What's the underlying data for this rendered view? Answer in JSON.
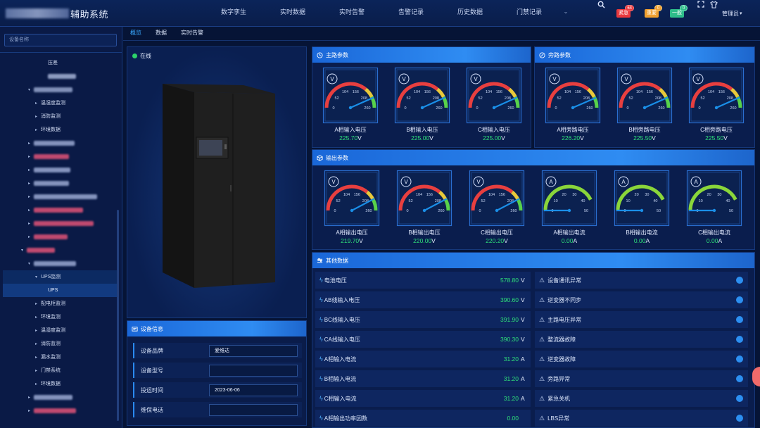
{
  "header": {
    "system_title": "辅助系统",
    "nav": [
      "数字孪生",
      "实时数据",
      "实时告警",
      "告警记录",
      "历史数据",
      "门禁记录"
    ],
    "alerts": [
      {
        "label": "紧急",
        "count": "64",
        "color": "#e8383d"
      },
      {
        "label": "重要",
        "count": "0",
        "color": "#f0a030"
      },
      {
        "label": "一般",
        "count": "0",
        "color": "#2ebd8a"
      }
    ],
    "user": "管理员"
  },
  "sidebar": {
    "search_placeholder": "设备名称",
    "items": [
      {
        "label": "压差"
      },
      {
        "label": ""
      },
      {
        "label": ""
      },
      {
        "label": "温湿度监测"
      },
      {
        "label": "消防监测"
      },
      {
        "label": "环境数据"
      },
      {
        "label": ""
      },
      {
        "label": ""
      },
      {
        "label": ""
      },
      {
        "label": ""
      },
      {
        "label": ""
      },
      {
        "label": ""
      },
      {
        "label": ""
      },
      {
        "label": ""
      },
      {
        "label": ""
      },
      {
        "label": "UPS监测"
      },
      {
        "label": "UPS"
      },
      {
        "label": "配电柜监测"
      },
      {
        "label": "环境监测"
      },
      {
        "label": "温湿度监测"
      },
      {
        "label": "消防监测"
      },
      {
        "label": "漏水监测"
      },
      {
        "label": "门禁系统"
      },
      {
        "label": "环境数据"
      },
      {
        "label": ""
      },
      {
        "label": ""
      }
    ]
  },
  "tabs": [
    "概览",
    "数据",
    "实时告警"
  ],
  "device": {
    "status": "在线"
  },
  "device_info": {
    "title": "设备信息",
    "rows": [
      {
        "label": "设备品牌",
        "value": "爱维达"
      },
      {
        "label": "设备型号",
        "value": ""
      },
      {
        "label": "投运时间",
        "value": "2023-06-06"
      },
      {
        "label": "维保电话",
        "value": ""
      }
    ]
  },
  "main_params": {
    "title": "主路参数",
    "gauges": [
      {
        "name": "A相输入电压",
        "value": "225.70",
        "unit": "V",
        "symbol": "V",
        "reading": 225.7,
        "ticks": [
          "0",
          "52",
          "104",
          "156",
          "208",
          "260"
        ]
      },
      {
        "name": "B相输入电压",
        "value": "225.00",
        "unit": "V",
        "symbol": "V",
        "reading": 225.0,
        "ticks": [
          "0",
          "52",
          "104",
          "156",
          "208",
          "260"
        ]
      },
      {
        "name": "C相输入电压",
        "value": "225.00",
        "unit": "V",
        "symbol": "V",
        "reading": 225.0,
        "ticks": [
          "0",
          "52",
          "104",
          "156",
          "208",
          "260"
        ]
      }
    ]
  },
  "bypass_params": {
    "title": "旁路参数",
    "gauges": [
      {
        "name": "A相旁路电压",
        "value": "226.20",
        "unit": "V",
        "symbol": "V",
        "reading": 226.2,
        "ticks": [
          "0",
          "52",
          "104",
          "156",
          "208",
          "260"
        ]
      },
      {
        "name": "B相旁路电压",
        "value": "225.50",
        "unit": "V",
        "symbol": "V",
        "reading": 225.5,
        "ticks": [
          "0",
          "52",
          "104",
          "156",
          "208",
          "260"
        ]
      },
      {
        "name": "C相旁路电压",
        "value": "225.50",
        "unit": "V",
        "symbol": "V",
        "reading": 225.5,
        "ticks": [
          "0",
          "52",
          "104",
          "156",
          "208",
          "260"
        ]
      }
    ]
  },
  "output_params": {
    "title": "输出参数",
    "gauges": [
      {
        "name": "A相输出电压",
        "value": "219.70",
        "unit": "V",
        "symbol": "V",
        "reading": 219.7,
        "ticks": [
          "0",
          "52",
          "104",
          "156",
          "208",
          "260"
        ]
      },
      {
        "name": "B相输出电压",
        "value": "220.00",
        "unit": "V",
        "symbol": "V",
        "reading": 220.0,
        "ticks": [
          "0",
          "52",
          "104",
          "156",
          "208",
          "260"
        ]
      },
      {
        "name": "C相输出电压",
        "value": "220.20",
        "unit": "V",
        "symbol": "V",
        "reading": 220.2,
        "ticks": [
          "0",
          "52",
          "104",
          "156",
          "208",
          "260"
        ]
      },
      {
        "name": "A相输出电流",
        "value": "0.00",
        "unit": "A",
        "symbol": "A",
        "reading": 0,
        "ticks": [
          "0",
          "10",
          "20",
          "30",
          "40",
          "50"
        ]
      },
      {
        "name": "B相输出电流",
        "value": "0.00",
        "unit": "A",
        "symbol": "A",
        "reading": 0,
        "ticks": [
          "0",
          "10",
          "20",
          "30",
          "40",
          "50"
        ]
      },
      {
        "name": "C相输出电流",
        "value": "0.00",
        "unit": "A",
        "symbol": "A",
        "reading": 0,
        "ticks": [
          "0",
          "10",
          "20",
          "30",
          "40",
          "50"
        ]
      }
    ]
  },
  "other_data": {
    "title": "其他数据",
    "measurements": [
      {
        "label": "电池电压",
        "value": "578.80",
        "unit": "V"
      },
      {
        "label": "AB线输入电压",
        "value": "390.60",
        "unit": "V"
      },
      {
        "label": "BC线输入电压",
        "value": "391.90",
        "unit": "V"
      },
      {
        "label": "CA线输入电压",
        "value": "390.30",
        "unit": "V"
      },
      {
        "label": "A相输入电流",
        "value": "31.20",
        "unit": "A"
      },
      {
        "label": "B相输入电流",
        "value": "31.20",
        "unit": "A"
      },
      {
        "label": "C相输入电流",
        "value": "31.20",
        "unit": "A"
      },
      {
        "label": "A相输出功率因数",
        "value": "0.00",
        "unit": ""
      }
    ],
    "statuses": [
      {
        "label": "设备通讯异常"
      },
      {
        "label": "逆变器不同步"
      },
      {
        "label": "主路电压异常"
      },
      {
        "label": "整流器故障"
      },
      {
        "label": "逆变器故障"
      },
      {
        "label": "旁路异常"
      },
      {
        "label": "紧急关机"
      },
      {
        "label": "LBS异常"
      }
    ]
  },
  "colors": {
    "accent": "#1f7ae0",
    "ok": "#2fe07a",
    "indicator": "#2c8ff1"
  }
}
